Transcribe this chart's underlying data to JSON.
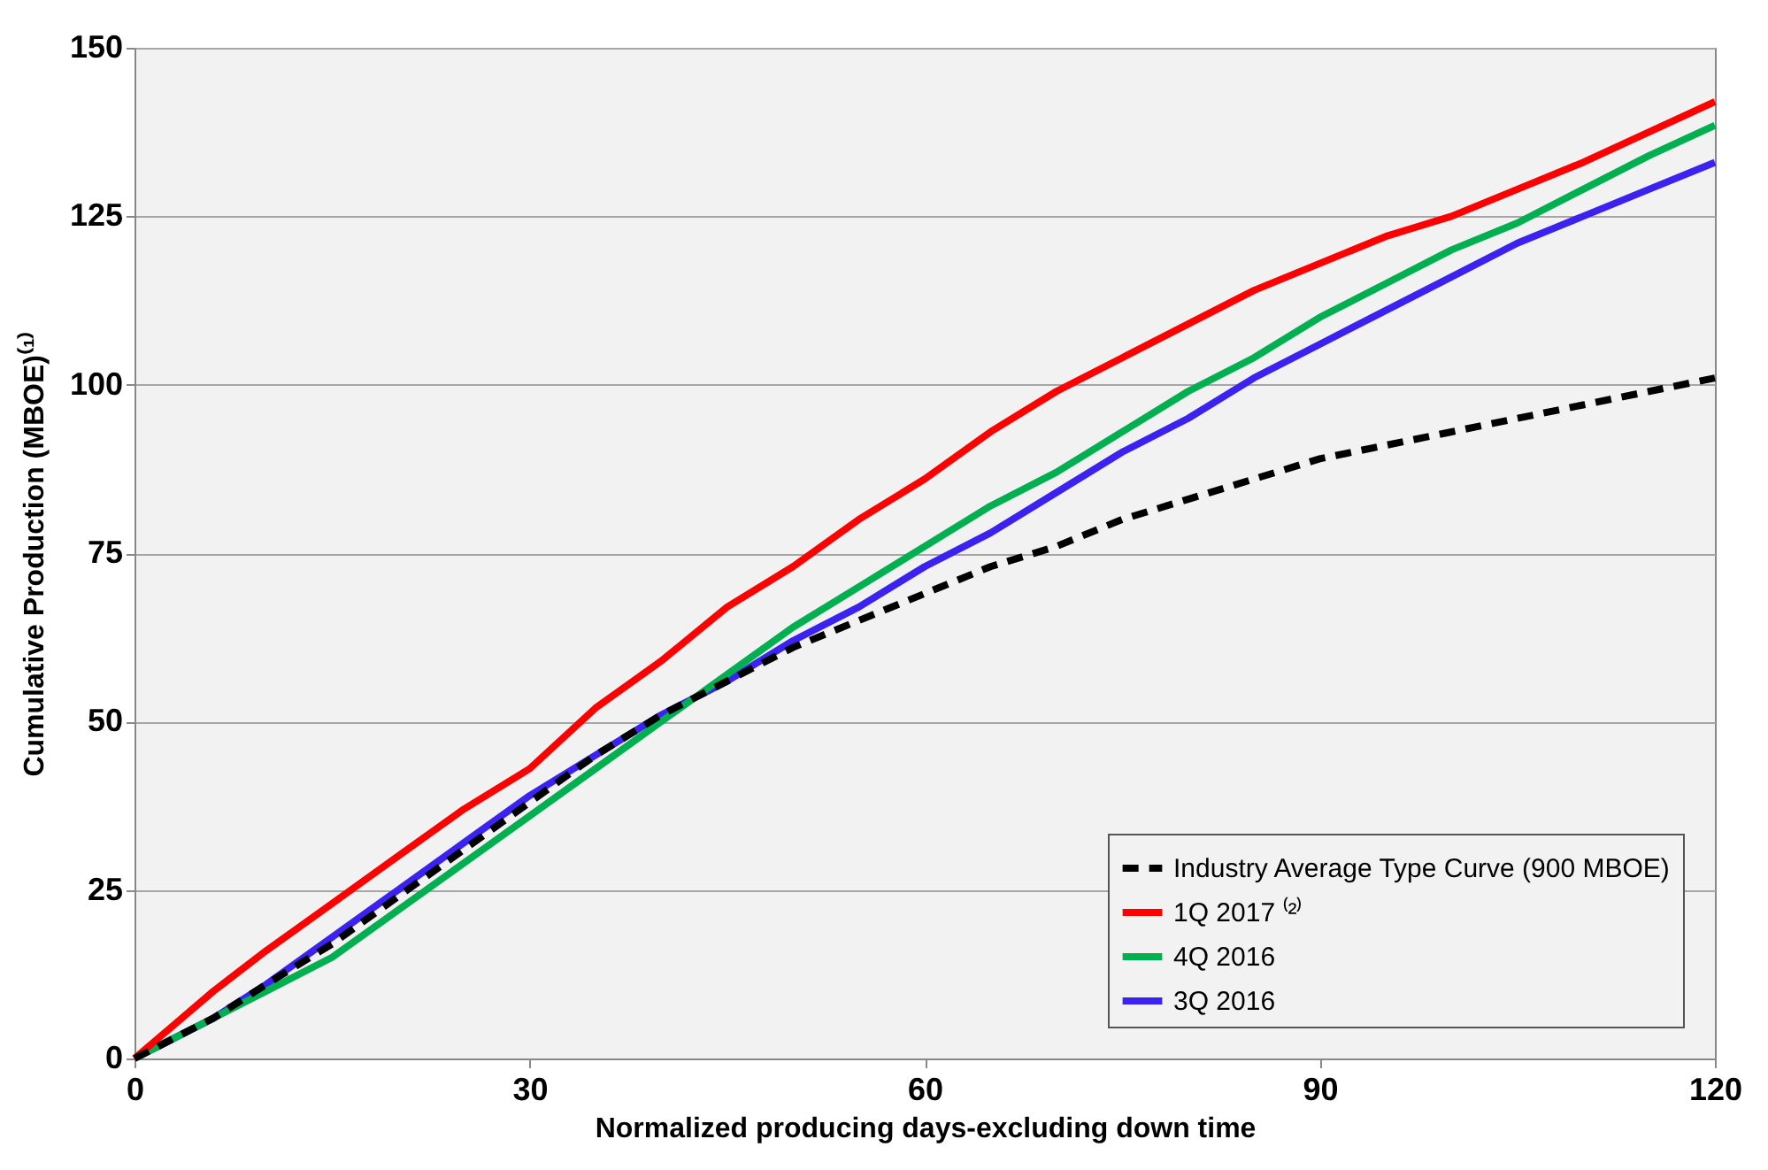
{
  "chart_data": {
    "type": "line",
    "xlabel": "Normalized producing days-excluding down time",
    "ylabel": "Cumulative Production (MBOE)⁽¹⁾",
    "x": [
      0,
      3,
      6,
      10,
      15,
      20,
      25,
      30,
      35,
      40,
      45,
      50,
      55,
      60,
      65,
      70,
      75,
      80,
      85,
      90,
      95,
      100,
      105,
      110,
      115,
      120
    ],
    "series": [
      {
        "name": "Industry Average Type Curve (900 MBOE)",
        "color": "#000000",
        "line_style": "dashed",
        "values": [
          0,
          3,
          6,
          11,
          17,
          24,
          31,
          38,
          45,
          51,
          56,
          61,
          65,
          69,
          73,
          76,
          80,
          83,
          86,
          89,
          91,
          93,
          95,
          97,
          99,
          101
        ]
      },
      {
        "name": "1Q 2017 ⁽²⁾",
        "color": "#ff0000",
        "line_style": "solid",
        "values": [
          0,
          5,
          10,
          16,
          23,
          30,
          37,
          43,
          52,
          59,
          67,
          73,
          80,
          86,
          93,
          99,
          104,
          109,
          114,
          118,
          122,
          125,
          129,
          133,
          137.5,
          142
        ]
      },
      {
        "name": "4Q 2016",
        "color": "#00b050",
        "line_style": "solid",
        "values": [
          0,
          3,
          6,
          10,
          15,
          22,
          29,
          36,
          43,
          50,
          57,
          64,
          70,
          76,
          82,
          87,
          93,
          99,
          104,
          110,
          115,
          120,
          124,
          129,
          134,
          138.5
        ]
      },
      {
        "name": "3Q 2016",
        "color": "#3b22f0",
        "line_style": "solid",
        "values": [
          0,
          3,
          6,
          11,
          18,
          25,
          32,
          39,
          45,
          51,
          56,
          62,
          67,
          73,
          78,
          84,
          90,
          95,
          101,
          106,
          111,
          116,
          121,
          125,
          129,
          133
        ]
      }
    ],
    "xlim": [
      0,
      120
    ],
    "xticks": [
      0,
      30,
      60,
      90,
      120
    ],
    "ylim": [
      0,
      150
    ],
    "yticks": [
      0,
      25,
      50,
      75,
      100,
      125,
      150
    ],
    "grid": "y",
    "legend": "bottom right"
  }
}
